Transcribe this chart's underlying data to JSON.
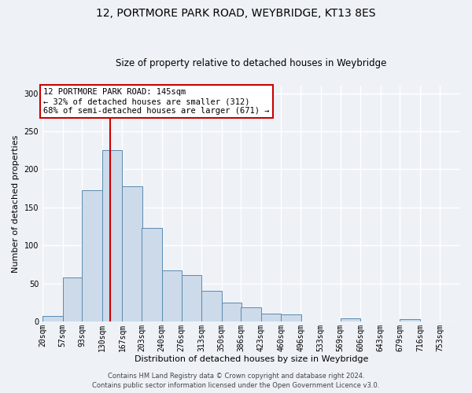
{
  "title": "12, PORTMORE PARK ROAD, WEYBRIDGE, KT13 8ES",
  "subtitle": "Size of property relative to detached houses in Weybridge",
  "xlabel": "Distribution of detached houses by size in Weybridge",
  "ylabel": "Number of detached properties",
  "bin_labels": [
    "20sqm",
    "57sqm",
    "93sqm",
    "130sqm",
    "167sqm",
    "203sqm",
    "240sqm",
    "276sqm",
    "313sqm",
    "350sqm",
    "386sqm",
    "423sqm",
    "460sqm",
    "496sqm",
    "533sqm",
    "569sqm",
    "606sqm",
    "643sqm",
    "679sqm",
    "716sqm",
    "753sqm"
  ],
  "bar_heights": [
    7,
    58,
    173,
    225,
    178,
    123,
    67,
    61,
    40,
    25,
    19,
    10,
    9,
    0,
    0,
    4,
    0,
    0,
    3,
    0,
    0
  ],
  "bin_edges": [
    20,
    57,
    93,
    130,
    167,
    203,
    240,
    276,
    313,
    350,
    386,
    423,
    460,
    496,
    533,
    569,
    606,
    643,
    679,
    716,
    753
  ],
  "bar_color": "#ccdaea",
  "bar_edge_color": "#5a8ab0",
  "property_value": 145,
  "vline_color": "#cc0000",
  "annotation_text": "12 PORTMORE PARK ROAD: 145sqm\n← 32% of detached houses are smaller (312)\n68% of semi-detached houses are larger (671) →",
  "annotation_box_color": "#ffffff",
  "annotation_box_edge": "#cc0000",
  "ylim": [
    0,
    310
  ],
  "yticks": [
    0,
    50,
    100,
    150,
    200,
    250,
    300
  ],
  "footer_line1": "Contains HM Land Registry data © Crown copyright and database right 2024.",
  "footer_line2": "Contains public sector information licensed under the Open Government Licence v3.0.",
  "bg_color": "#eef2f7",
  "grid_color": "#ffffff",
  "title_fontsize": 10,
  "subtitle_fontsize": 8.5,
  "axis_label_fontsize": 8,
  "tick_label_fontsize": 7,
  "annotation_fontsize": 7.5,
  "footer_fontsize": 6
}
